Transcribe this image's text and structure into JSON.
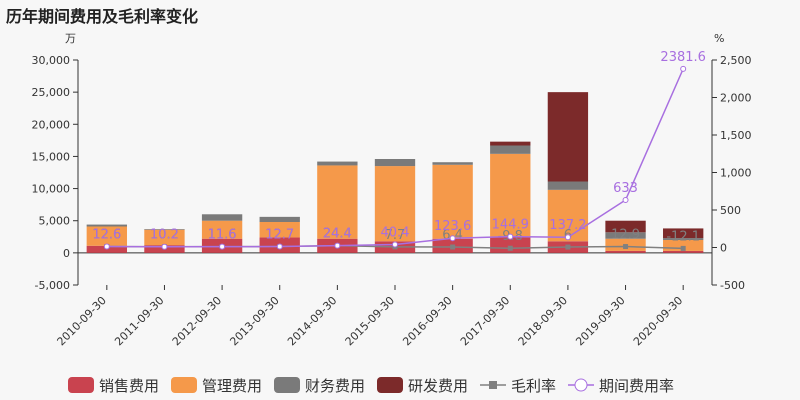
{
  "title": "历年期间费用及毛利率变化",
  "chart_data": {
    "type": "bar",
    "stacked": true,
    "title": "历年期间费用及毛利率变化",
    "left_axis_unit": "万",
    "right_axis_unit": "%",
    "ylim_left": [
      -5000,
      30000
    ],
    "ylim_right": [
      -500,
      2500
    ],
    "yticks_left": [
      "-5,000",
      "0",
      "5,000",
      "10,000",
      "15,000",
      "20,000",
      "25,000",
      "30,000"
    ],
    "yticks_right": [
      "-500",
      "0",
      "500",
      "1,000",
      "1,500",
      "2,000",
      "2,500"
    ],
    "categories": [
      "2010-09-30",
      "2011-09-30",
      "2012-09-30",
      "2013-09-30",
      "2014-09-30",
      "2015-09-30",
      "2016-09-30",
      "2017-09-30",
      "2018-09-30",
      "2019-09-30",
      "2020-09-30"
    ],
    "series": [
      {
        "name": "销售费用",
        "kind": "bar",
        "axis": "left",
        "color": "#c9434f",
        "values": [
          1100,
          1200,
          2200,
          2400,
          2200,
          1800,
          2200,
          2400,
          1800,
          300,
          300
        ]
      },
      {
        "name": "管理费用",
        "kind": "bar",
        "axis": "left",
        "color": "#f5994a",
        "values": [
          3000,
          2400,
          2800,
          2400,
          11400,
          11700,
          11500,
          13000,
          8000,
          1900,
          1700
        ]
      },
      {
        "name": "财务费用",
        "kind": "bar",
        "axis": "left",
        "color": "#7a7a7a",
        "values": [
          300,
          100,
          1000,
          800,
          600,
          1100,
          400,
          1300,
          1300,
          1000,
          300
        ]
      },
      {
        "name": "研发费用",
        "kind": "bar",
        "axis": "left",
        "color": "#7c2a2a",
        "values": [
          0,
          0,
          0,
          0,
          0,
          0,
          0,
          600,
          13900,
          1800,
          1500
        ]
      },
      {
        "name": "毛利率",
        "kind": "line",
        "axis": "right",
        "color": "#808080",
        "values": [
          12.6,
          10.2,
          11.6,
          12.7,
          24.4,
          7.7,
          6.4,
          -9.8,
          6,
          12.9,
          -12.1
        ],
        "labels": [
          "12.6",
          "10.2",
          "11.6",
          "12.7",
          "24.4",
          "7.7",
          "6.4",
          "-9.8",
          "6",
          "12.9",
          "-12.1"
        ]
      },
      {
        "name": "期间费用率",
        "kind": "line",
        "axis": "right",
        "color": "#a86fe0",
        "values": [
          12.6,
          10.2,
          11.6,
          12.7,
          24.4,
          40.4,
          123.6,
          144.9,
          137.2,
          633,
          2381.6
        ],
        "labels": [
          "12.6",
          "10.2",
          "11.6",
          "12.7",
          "24.4",
          "40.4",
          "123.6",
          "144.9",
          "137.2",
          "633",
          "2381.6"
        ]
      }
    ],
    "legend_position": "bottom",
    "grid": false
  }
}
